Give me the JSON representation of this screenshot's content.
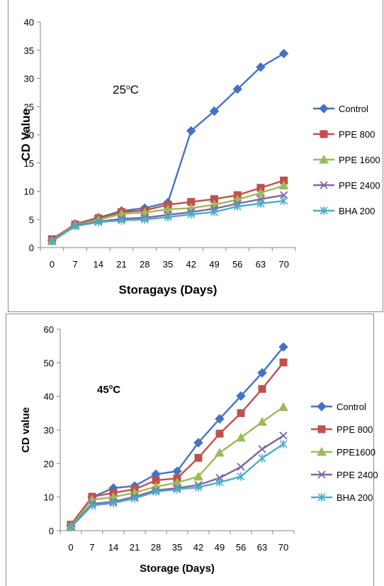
{
  "colors": {
    "Control": "#4472C4",
    "PPE 800": "#C0504D",
    "PPE 1600": "#9BBB59",
    "PPE 2400": "#8064A2",
    "BHA 200": "#4BACC6",
    "axis": "#868686"
  },
  "chart_data": [
    {
      "type": "line",
      "annotation": {
        "prefix": "25",
        "sup": "o",
        "suffix": "C"
      },
      "xlabel": "Storagays (Days)",
      "ylabel": "CD  Value",
      "categories": [
        "0",
        "7",
        "14",
        "21",
        "28",
        "35",
        "42",
        "49",
        "56",
        "63",
        "70"
      ],
      "ylim": [
        0,
        40
      ],
      "yticks": [
        0,
        5,
        10,
        15,
        20,
        25,
        30,
        35,
        40
      ],
      "grid": false,
      "legend_position": "right",
      "series": [
        {
          "name": "Control",
          "marker": "diamond",
          "values": [
            1.3,
            4.2,
            5.3,
            6.5,
            7.0,
            8.0,
            20.7,
            24.2,
            28.1,
            32.0,
            34.4
          ]
        },
        {
          "name": "PPE 800",
          "marker": "square",
          "values": [
            1.5,
            4.1,
            5.2,
            6.3,
            6.6,
            7.6,
            8.1,
            8.6,
            9.3,
            10.6,
            11.9
          ]
        },
        {
          "name": "PPE 1600",
          "marker": "triangle",
          "values": [
            1.2,
            4.0,
            4.9,
            6.0,
            6.2,
            6.8,
            7.0,
            7.6,
            8.5,
            9.7,
            11.0
          ]
        },
        {
          "name": "PPE 2400",
          "marker": "x",
          "values": [
            1.1,
            3.9,
            4.6,
            5.1,
            5.3,
            5.8,
            6.3,
            6.9,
            7.8,
            8.6,
            9.3
          ]
        },
        {
          "name": "BHA 200",
          "marker": "star",
          "values": [
            1.1,
            3.8,
            4.5,
            4.8,
            5.0,
            5.4,
            5.9,
            6.3,
            7.3,
            7.8,
            8.3
          ]
        }
      ]
    },
    {
      "type": "line",
      "annotation": {
        "prefix": "45",
        "sup": "o",
        "suffix": "C"
      },
      "xlabel": "Storage  (Days)",
      "ylabel": "CD  value",
      "categories": [
        "0",
        "7",
        "14",
        "21",
        "28",
        "35",
        "42",
        "49",
        "56",
        "63",
        "70"
      ],
      "ylim": [
        0,
        60
      ],
      "yticks": [
        0,
        10,
        20,
        30,
        40,
        50,
        60
      ],
      "grid": false,
      "legend_position": "right",
      "series": [
        {
          "name": "Control",
          "marker": "diamond",
          "values": [
            1.5,
            10.0,
            12.7,
            13.3,
            16.8,
            17.7,
            26.2,
            33.3,
            40.1,
            47.0,
            54.7
          ]
        },
        {
          "name": "PPE 800",
          "marker": "square",
          "values": [
            1.8,
            10.1,
            11.3,
            12.3,
            15.0,
            15.6,
            21.7,
            28.9,
            35.0,
            42.2,
            50.1
          ]
        },
        {
          "name": "PPE1600",
          "marker": "triangle",
          "values": [
            1.3,
            9.2,
            10.0,
            11.3,
            13.1,
            14.3,
            16.1,
            23.2,
            27.7,
            32.4,
            36.8
          ]
        },
        {
          "name": "PPE 2400",
          "marker": "x",
          "values": [
            1.1,
            8.0,
            8.6,
            10.1,
            12.0,
            12.7,
            13.6,
            15.7,
            19.0,
            24.3,
            28.3
          ]
        },
        {
          "name": "BHA 200",
          "marker": "star",
          "values": [
            1.0,
            7.5,
            8.2,
            9.6,
            11.6,
            12.3,
            12.9,
            14.4,
            16.1,
            21.6,
            25.8
          ]
        }
      ]
    }
  ]
}
